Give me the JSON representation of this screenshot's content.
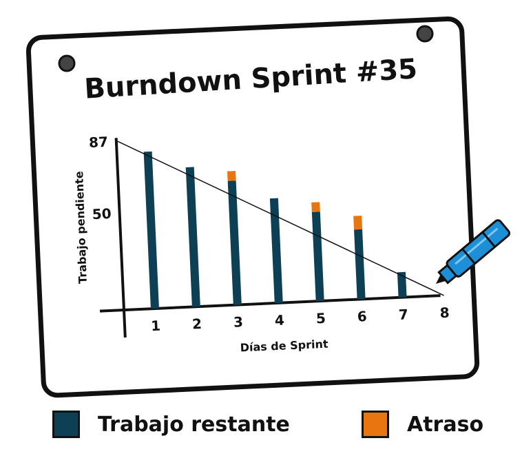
{
  "chart_data": {
    "type": "bar",
    "title": "Burndown Sprint #35",
    "xlabel": "Días de Sprint",
    "ylabel": "Trabajo pendiente",
    "categories": [
      "1",
      "2",
      "3",
      "4",
      "5",
      "6",
      "7",
      "8"
    ],
    "series": [
      {
        "name": "Trabajo restante",
        "values": [
          81,
          72,
          64,
          54,
          46,
          36,
          13,
          0
        ]
      },
      {
        "name": "Atraso",
        "values": [
          0,
          0,
          5,
          0,
          5,
          7,
          0,
          0
        ]
      }
    ],
    "ideal_line": {
      "start": 87,
      "end": 0
    },
    "y_ticks": [
      "87",
      "50"
    ],
    "y_tick_values": [
      87,
      50
    ],
    "ylim": [
      0,
      87
    ]
  },
  "legend": {
    "items": [
      {
        "label": "Trabajo restante",
        "color": "#0d3f55"
      },
      {
        "label": "Atraso",
        "color": "#e87510"
      }
    ]
  },
  "colors": {
    "remaining": "#0d3f55",
    "delay": "#e87510",
    "ink": "#111111",
    "marker": "#1d8fd6"
  }
}
